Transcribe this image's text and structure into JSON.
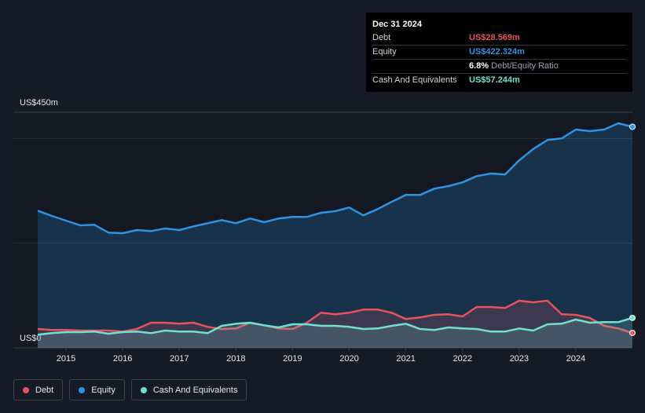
{
  "chart_data": {
    "type": "area",
    "x": [
      2014.5,
      2014.75,
      2015.0,
      2015.25,
      2015.5,
      2015.75,
      2016.0,
      2016.25,
      2016.5,
      2016.75,
      2017.0,
      2017.25,
      2017.5,
      2017.75,
      2018.0,
      2018.25,
      2018.5,
      2018.75,
      2019.0,
      2019.25,
      2019.5,
      2019.75,
      2020.0,
      2020.25,
      2020.5,
      2020.75,
      2021.0,
      2021.25,
      2021.5,
      2021.75,
      2022.0,
      2022.25,
      2022.5,
      2022.75,
      2023.0,
      2023.25,
      2023.5,
      2023.75,
      2024.0,
      2024.25,
      2024.5,
      2024.75,
      2025.0
    ],
    "series": [
      {
        "name": "Debt",
        "color": "#e5535f",
        "values": [
          36,
          34,
          34,
          33,
          33,
          33,
          31,
          36,
          48,
          48,
          46,
          48,
          40,
          36,
          37,
          48,
          43,
          37,
          36,
          48,
          67,
          64,
          67,
          73,
          73,
          67,
          55,
          58,
          63,
          64,
          60,
          78,
          78,
          76,
          90,
          87,
          90,
          64,
          63,
          57,
          42,
          37,
          28.569
        ]
      },
      {
        "name": "Equity",
        "color": "#2f93e3",
        "values": [
          262,
          252,
          243,
          234,
          235,
          220,
          219,
          225,
          223,
          228,
          225,
          232,
          238,
          244,
          238,
          247,
          240,
          247,
          250,
          250,
          258,
          261,
          268,
          253,
          265,
          279,
          292,
          292,
          304,
          309,
          316,
          328,
          333,
          331,
          358,
          380,
          397,
          400,
          417,
          414,
          417,
          429,
          422.324
        ]
      },
      {
        "name": "Cash And Equivalents",
        "color": "#72e0cf",
        "values": [
          25,
          28,
          30,
          30,
          31,
          27,
          30,
          31,
          28,
          33,
          31,
          31,
          28,
          42,
          46,
          48,
          43,
          39,
          45,
          45,
          42,
          42,
          40,
          36,
          37,
          42,
          46,
          36,
          34,
          39,
          37,
          36,
          31,
          31,
          37,
          33,
          45,
          46,
          54,
          48,
          49,
          49,
          57.244
        ]
      }
    ],
    "xlim": [
      2014.07,
      2025.0
    ],
    "xticks": [
      2015,
      2016,
      2017,
      2018,
      2019,
      2020,
      2021,
      2022,
      2023,
      2024
    ],
    "ylim": [
      0,
      450
    ],
    "yticks": [
      {
        "value": 0,
        "label": "US$0"
      },
      {
        "value": 450,
        "label": "US$450m"
      }
    ],
    "ygrid": [
      200,
      400
    ],
    "tooltip": {
      "title": "Dec 31 2024",
      "rows": [
        {
          "label": "Debt",
          "value": "US$28.569m"
        },
        {
          "label": "Equity",
          "value": "US$422.324m"
        }
      ],
      "ratio": "6.8%",
      "ratio_label": "Debt/Equity Ratio",
      "cash": {
        "label": "Cash And Equivalents",
        "value": "US$57.244m"
      }
    }
  }
}
